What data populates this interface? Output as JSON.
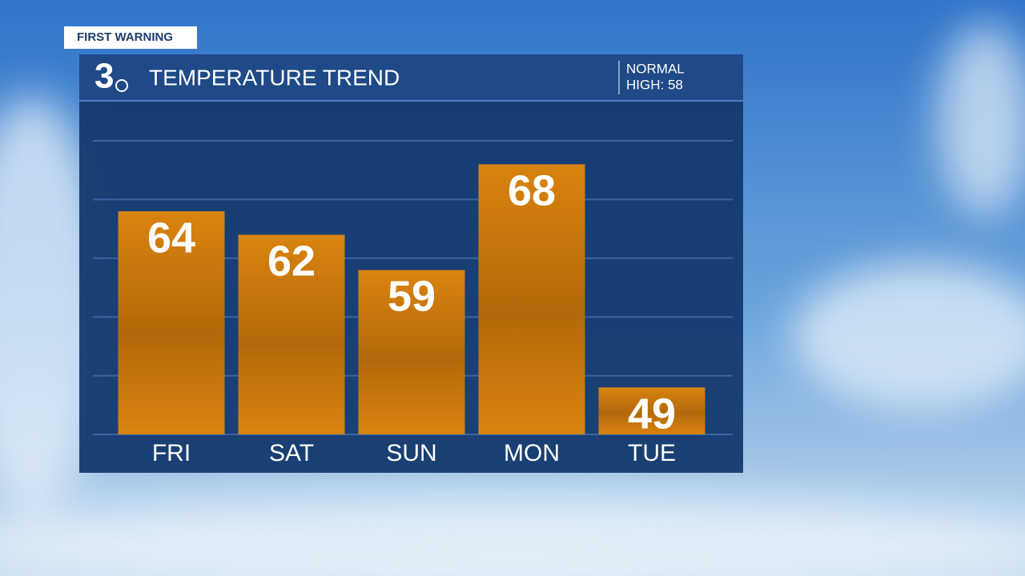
{
  "chart_data": {
    "type": "bar",
    "badge": "FIRST WARNING",
    "logo": "3",
    "title": "TEMPERATURE TREND",
    "annotations": [
      "NORMAL",
      "HIGH: 58"
    ],
    "categories": [
      "FRI",
      "SAT",
      "SUN",
      "MON",
      "TUE"
    ],
    "values": [
      64,
      62,
      59,
      68,
      49
    ],
    "color": "#d27d10",
    "ylim": [
      45,
      70
    ],
    "yticks": [
      45,
      50,
      55,
      60,
      65,
      70
    ],
    "grid": true
  }
}
